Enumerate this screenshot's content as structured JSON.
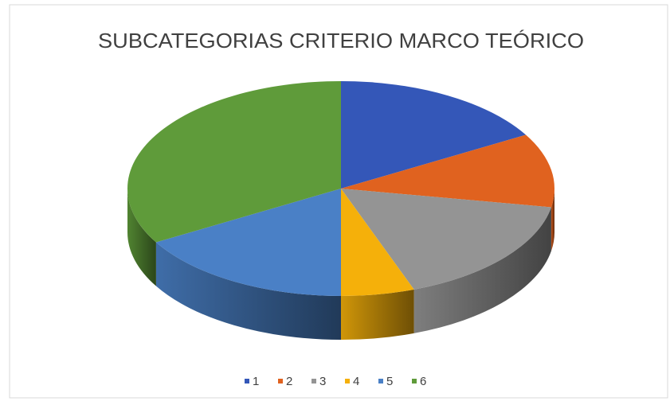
{
  "chart_data": {
    "type": "pie",
    "title": "SUBCATEGORIAS CRITERIO MARCO TEÓRICO",
    "categories": [
      "1",
      "2",
      "3",
      "4",
      "5",
      "6"
    ],
    "values": [
      3,
      2,
      3,
      1,
      3,
      6
    ],
    "colors": [
      "#3457b8",
      "#e0621f",
      "#949494",
      "#f5b00a",
      "#4a80c6",
      "#5f9b3a"
    ],
    "legend": "bottom"
  }
}
